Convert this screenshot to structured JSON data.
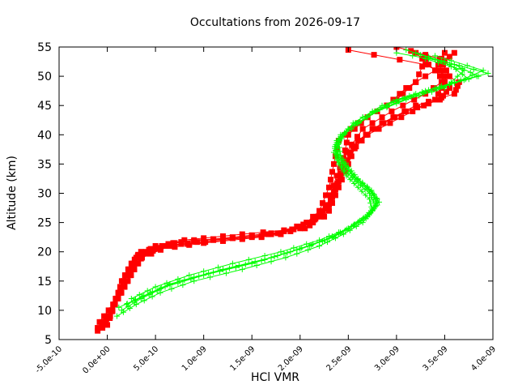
{
  "chart_data": {
    "type": "line",
    "title": "Occultations from 2026-09-17",
    "xlabel": "HCl VMR",
    "ylabel": "Altitude (km)",
    "xlim": [
      -5e-10,
      4e-09
    ],
    "ylim": [
      5,
      55
    ],
    "xticks": [
      -5e-10,
      0,
      5e-10,
      1e-09,
      1.5e-09,
      2e-09,
      2.5e-09,
      3e-09,
      3.5e-09,
      4e-09
    ],
    "xtick_labels": [
      "-5.0e-10",
      "0.0e+00",
      "5.0e-10",
      "1.0e-09",
      "1.5e-09",
      "2.0e-09",
      "2.5e-09",
      "3.0e-09",
      "3.5e-09",
      "4.0e-09"
    ],
    "yticks": [
      5,
      10,
      15,
      20,
      25,
      30,
      35,
      40,
      45,
      50,
      55
    ],
    "ytick_labels": [
      "5",
      "10",
      "15",
      "20",
      "25",
      "30",
      "35",
      "40",
      "45",
      "50",
      "55"
    ],
    "grid": false,
    "colors": {
      "red": "#ff0000",
      "green": "#00ff00"
    },
    "series": [
      {
        "marker": "square",
        "color": "#ff0000",
        "profiles": [
          [
            [
              -1e-10,
              6.5
            ],
            [
              3e-11,
              9
            ],
            [
              1e-10,
              12
            ],
            [
              1.5e-10,
              15
            ],
            [
              2.5e-10,
              18
            ],
            [
              3.5e-10,
              20
            ],
            [
              6e-10,
              21
            ],
            [
              1.1e-09,
              22
            ],
            [
              1.7e-09,
              23
            ],
            [
              2.1e-09,
              25
            ],
            [
              2.3e-09,
              28
            ],
            [
              2.4e-09,
              32
            ],
            [
              2.45e-09,
              36
            ],
            [
              2.5e-09,
              40
            ],
            [
              2.7e-09,
              43
            ],
            [
              3e-09,
              46
            ],
            [
              3.2e-09,
              49
            ],
            [
              3.3e-09,
              53
            ]
          ],
          [
            [
              -5e-11,
              7
            ],
            [
              5e-11,
              10
            ],
            [
              1.2e-10,
              13
            ],
            [
              2e-10,
              16
            ],
            [
              3e-10,
              19
            ],
            [
              5e-10,
              21
            ],
            [
              9e-10,
              22
            ],
            [
              1.5e-09,
              22.5
            ],
            [
              2e-09,
              24
            ],
            [
              2.2e-09,
              27
            ],
            [
              2.3e-09,
              31
            ],
            [
              2.35e-09,
              35
            ],
            [
              2.4e-09,
              39
            ],
            [
              2.6e-09,
              42
            ],
            [
              2.9e-09,
              45
            ],
            [
              3.1e-09,
              48
            ],
            [
              3.4e-09,
              51
            ],
            [
              3.5e-09,
              54
            ]
          ],
          [
            [
              0.0,
              7.5
            ],
            [
              8e-11,
              11
            ],
            [
              1.8e-10,
              14
            ],
            [
              2.8e-10,
              17
            ],
            [
              4e-10,
              20
            ],
            [
              7e-10,
              21.5
            ],
            [
              1.3e-09,
              22.5
            ],
            [
              1.9e-09,
              23.5
            ],
            [
              2.25e-09,
              26
            ],
            [
              2.35e-09,
              30
            ],
            [
              2.45e-09,
              34
            ],
            [
              2.55e-09,
              38
            ],
            [
              2.75e-09,
              41
            ],
            [
              3.1e-09,
              44
            ],
            [
              3.45e-09,
              46
            ],
            [
              3.55e-09,
              48
            ],
            [
              3.4e-09,
              51
            ],
            [
              3.2e-09,
              54
            ]
          ],
          [
            [
              -8e-11,
              8
            ],
            [
              6e-11,
              11
            ],
            [
              1.4e-10,
              14
            ],
            [
              2.2e-10,
              17
            ],
            [
              3.2e-10,
              19.5
            ],
            [
              5.5e-10,
              20.5
            ],
            [
              1e-09,
              21.5
            ],
            [
              1.6e-09,
              22.5
            ],
            [
              2.1e-09,
              24.5
            ],
            [
              2.28e-09,
              28
            ],
            [
              2.38e-09,
              33
            ],
            [
              2.48e-09,
              37
            ],
            [
              2.65e-09,
              41
            ],
            [
              2.95e-09,
              44
            ],
            [
              3.3e-09,
              47
            ],
            [
              3.55e-09,
              50
            ],
            [
              3.45e-09,
              53
            ],
            [
              3e-09,
              55
            ]
          ],
          [
            [
              2e-11,
              9
            ],
            [
              1.1e-10,
              12
            ],
            [
              2e-10,
              15
            ],
            [
              3e-10,
              18
            ],
            [
              4.5e-10,
              20.5
            ],
            [
              8e-10,
              22
            ],
            [
              1.4e-09,
              23
            ],
            [
              2.05e-09,
              24
            ],
            [
              2.3e-09,
              27
            ],
            [
              2.4e-09,
              31
            ],
            [
              2.5e-09,
              35
            ],
            [
              2.6e-09,
              39
            ],
            [
              2.85e-09,
              42
            ],
            [
              3.2e-09,
              45
            ],
            [
              3.6e-09,
              47
            ],
            [
              3.65e-09,
              49
            ],
            [
              3.3e-09,
              52
            ],
            [
              2.5e-09,
              54.5
            ]
          ],
          [
            [
              -1e-10,
              7
            ],
            [
              4e-11,
              10
            ],
            [
              1.3e-10,
              13
            ],
            [
              2.4e-10,
              16
            ],
            [
              3.6e-10,
              19
            ],
            [
              6.5e-10,
              21
            ],
            [
              1.2e-09,
              22
            ],
            [
              1.8e-09,
              23
            ],
            [
              2.15e-09,
              25.5
            ],
            [
              2.32e-09,
              29
            ],
            [
              2.42e-09,
              33
            ],
            [
              2.52e-09,
              37
            ],
            [
              2.7e-09,
              40
            ],
            [
              3.05e-09,
              43
            ],
            [
              3.4e-09,
              46
            ],
            [
              3.5e-09,
              49
            ],
            [
              3.45e-09,
              52
            ],
            [
              3.6e-09,
              54
            ]
          ]
        ]
      },
      {
        "marker": "plus",
        "color": "#00ff00",
        "profiles": [
          [
            [
              1.5e-10,
              10
            ],
            [
              3.5e-10,
              12
            ],
            [
              6e-10,
              14
            ],
            [
              1e-09,
              16
            ],
            [
              1.5e-09,
              18
            ],
            [
              1.9e-09,
              20
            ],
            [
              2.25e-09,
              22
            ],
            [
              2.5e-09,
              24
            ],
            [
              2.7e-09,
              26
            ],
            [
              2.8e-09,
              28
            ],
            [
              2.75e-09,
              30
            ],
            [
              2.6e-09,
              32
            ],
            [
              2.5e-09,
              34
            ],
            [
              2.4e-09,
              36
            ],
            [
              2.38e-09,
              38
            ],
            [
              2.45e-09,
              40
            ],
            [
              2.7e-09,
              43
            ],
            [
              3e-09,
              46
            ],
            [
              3.4e-09,
              48
            ],
            [
              3.85e-09,
              50
            ],
            [
              3.6e-09,
              52
            ],
            [
              3.2e-09,
              54
            ]
          ],
          [
            [
              2e-10,
              11
            ],
            [
              4.5e-10,
              13
            ],
            [
              7.5e-10,
              15
            ],
            [
              1.2e-09,
              17
            ],
            [
              1.7e-09,
              19
            ],
            [
              2.1e-09,
              21
            ],
            [
              2.4e-09,
              23
            ],
            [
              2.6e-09,
              25
            ],
            [
              2.75e-09,
              27
            ],
            [
              2.8e-09,
              29
            ],
            [
              2.7e-09,
              31
            ],
            [
              2.55e-09,
              33
            ],
            [
              2.45e-09,
              35
            ],
            [
              2.38e-09,
              37
            ],
            [
              2.4e-09,
              39
            ],
            [
              2.55e-09,
              42
            ],
            [
              2.85e-09,
              45
            ],
            [
              3.2e-09,
              47
            ],
            [
              3.6e-09,
              49
            ],
            [
              3.95e-09,
              50.5
            ],
            [
              3.5e-09,
              52.5
            ],
            [
              3e-09,
              54
            ]
          ],
          [
            [
              1e-10,
              9
            ],
            [
              3e-10,
              11
            ],
            [
              5.5e-10,
              13
            ],
            [
              9e-10,
              15
            ],
            [
              1.4e-09,
              17
            ],
            [
              1.85e-09,
              19
            ],
            [
              2.2e-09,
              21
            ],
            [
              2.45e-09,
              23
            ],
            [
              2.65e-09,
              25
            ],
            [
              2.75e-09,
              27
            ],
            [
              2.72e-09,
              29
            ],
            [
              2.6e-09,
              31
            ],
            [
              2.48e-09,
              33
            ],
            [
              2.4e-09,
              35
            ],
            [
              2.35e-09,
              37
            ],
            [
              2.38e-09,
              39
            ],
            [
              2.5e-09,
              41
            ],
            [
              2.8e-09,
              44
            ],
            [
              3.1e-09,
              46
            ],
            [
              3.5e-09,
              48
            ],
            [
              3.7e-09,
              51
            ],
            [
              3.3e-09,
              53
            ]
          ],
          [
            [
              2.5e-10,
              12
            ],
            [
              5e-10,
              14
            ],
            [
              8.5e-10,
              16
            ],
            [
              1.3e-09,
              18
            ],
            [
              1.8e-09,
              20
            ],
            [
              2.2e-09,
              22
            ],
            [
              2.5e-09,
              24
            ],
            [
              2.68e-09,
              26
            ],
            [
              2.78e-09,
              28
            ],
            [
              2.72e-09,
              30
            ],
            [
              2.58e-09,
              32
            ],
            [
              2.46e-09,
              34
            ],
            [
              2.38e-09,
              36
            ],
            [
              2.36e-09,
              38
            ],
            [
              2.42e-09,
              40
            ],
            [
              2.65e-09,
              43
            ],
            [
              2.95e-09,
              45.5
            ],
            [
              3.3e-09,
              47.5
            ],
            [
              3.75e-09,
              49.5
            ],
            [
              3.55e-09,
              52
            ],
            [
              3.1e-09,
              54.5
            ]
          ],
          [
            [
              1.2e-10,
              10.5
            ],
            [
              3.8e-10,
              12.5
            ],
            [
              6.5e-10,
              14.5
            ],
            [
              1.1e-09,
              16.5
            ],
            [
              1.6e-09,
              18.5
            ],
            [
              2e-09,
              20.5
            ],
            [
              2.35e-09,
              22.5
            ],
            [
              2.55e-09,
              24.5
            ],
            [
              2.72e-09,
              26.5
            ],
            [
              2.82e-09,
              28.5
            ],
            [
              2.74e-09,
              30.5
            ],
            [
              2.6e-09,
              32.5
            ],
            [
              2.5e-09,
              34.5
            ],
            [
              2.42e-09,
              36.5
            ],
            [
              2.4e-09,
              38.5
            ],
            [
              2.5e-09,
              41
            ],
            [
              2.78e-09,
              44
            ],
            [
              3.15e-09,
              46.5
            ],
            [
              3.55e-09,
              48.5
            ],
            [
              3.9e-09,
              51
            ],
            [
              3.4e-09,
              53.5
            ]
          ]
        ]
      }
    ]
  }
}
